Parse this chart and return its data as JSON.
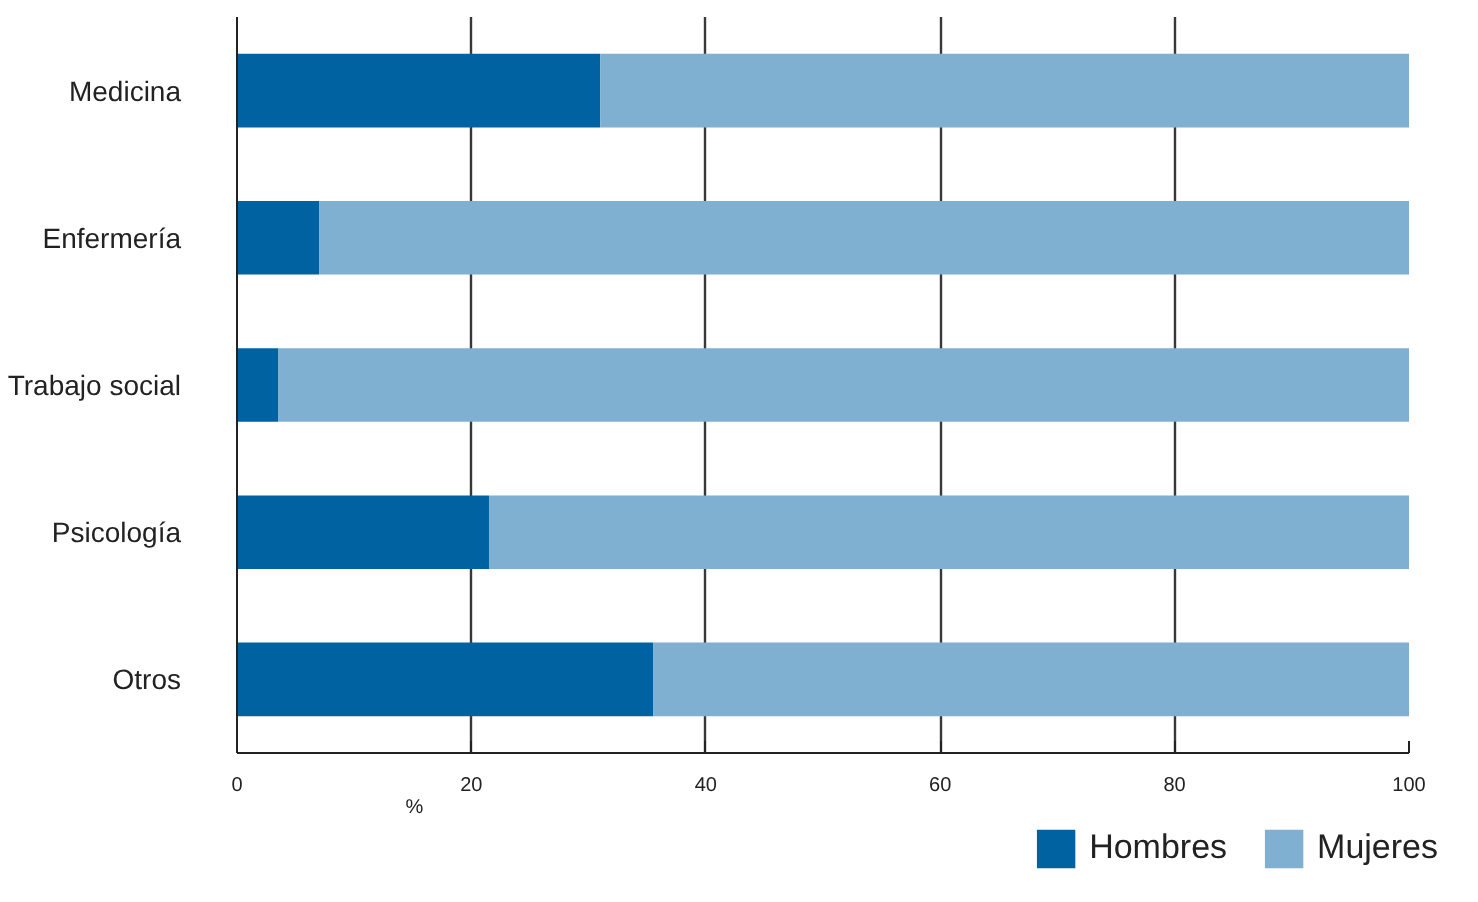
{
  "chart_data": {
    "type": "bar",
    "orientation": "horizontal",
    "stacked": true,
    "xlabel": "%",
    "categories": [
      "Medicina",
      "Enfermería",
      "Trabajo social",
      "Psicología",
      "Otros"
    ],
    "series": [
      {
        "name": "Hombres",
        "color": "#0062a1",
        "values": [
          31,
          7,
          3.5,
          21.5,
          35.5
        ]
      },
      {
        "name": "Mujeres",
        "color": "#7fb0d1",
        "values": [
          69,
          93,
          96.5,
          78.5,
          64.5
        ]
      }
    ],
    "xlim": [
      0,
      100
    ],
    "xticks": [
      0,
      20,
      40,
      60,
      80,
      100
    ],
    "grid": "x",
    "legend": "bottom right"
  }
}
